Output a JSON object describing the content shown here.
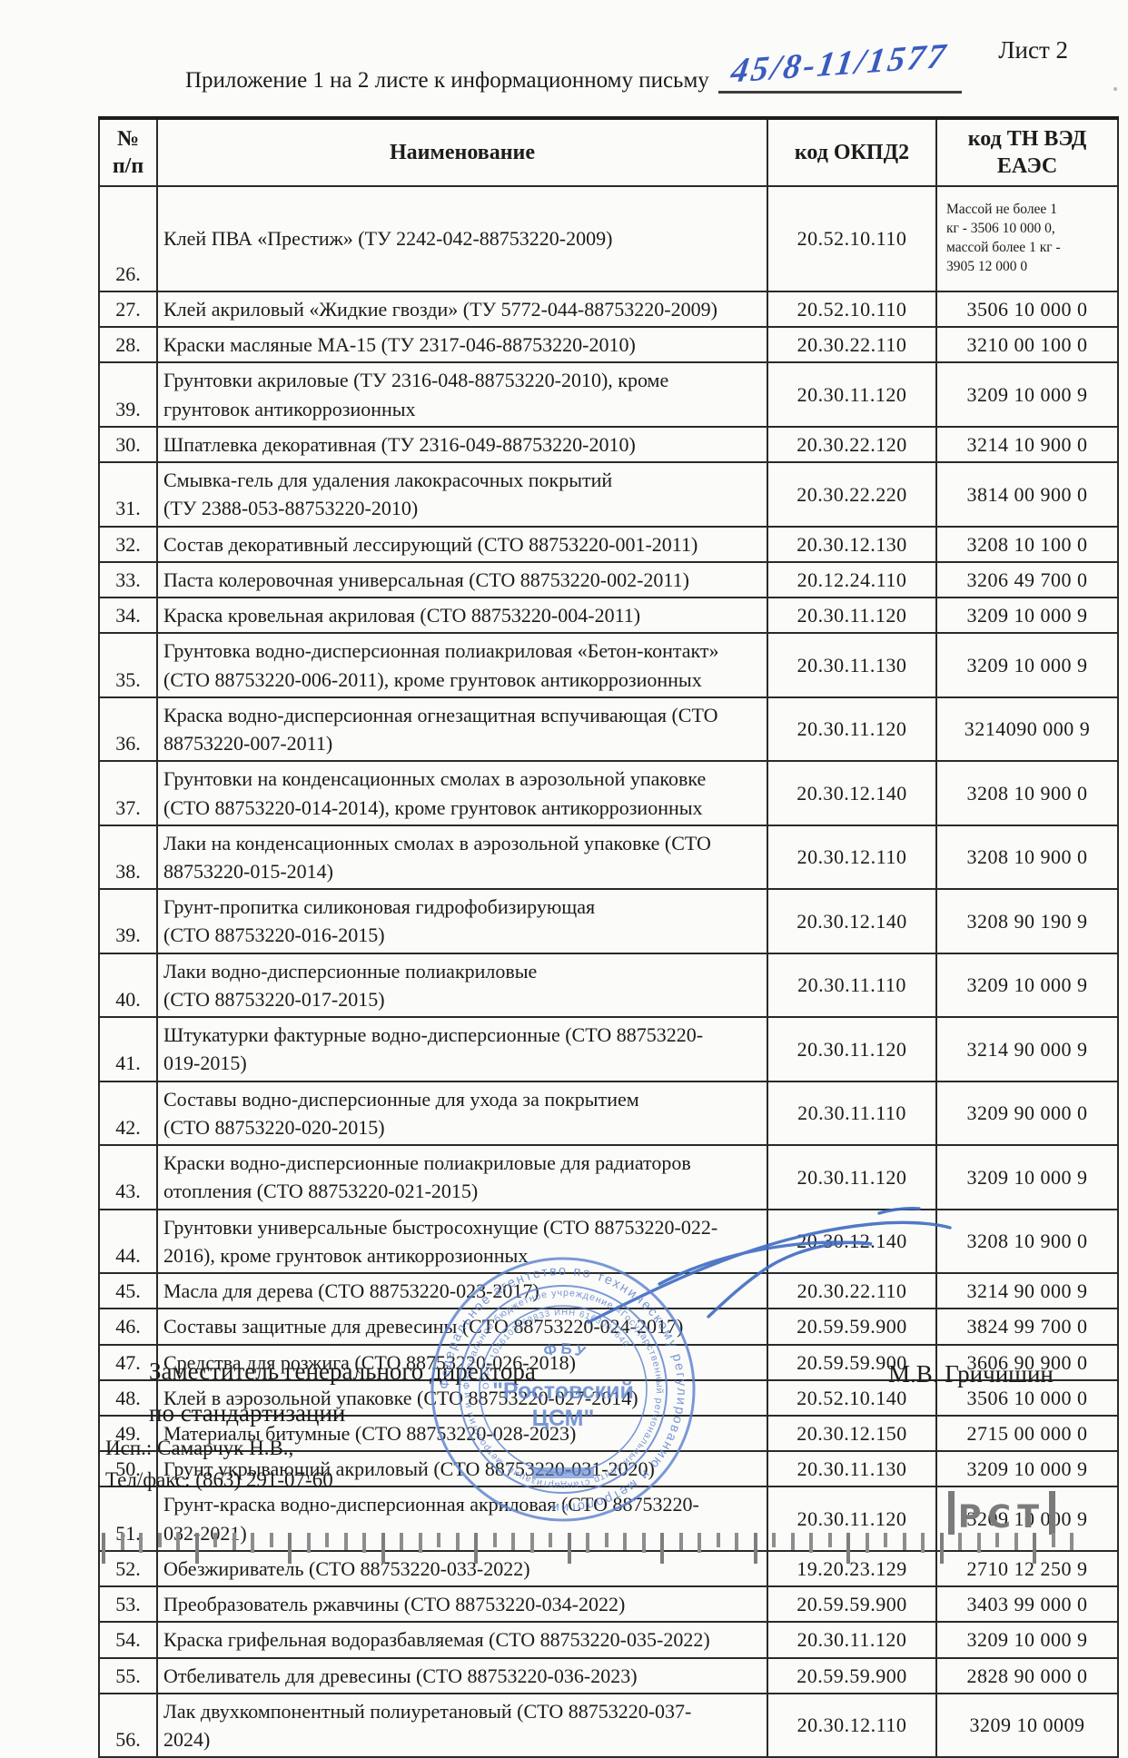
{
  "page": {
    "sheet_label": "Лист 2",
    "title_line": "Приложение 1 на 2 листе к информационному письму",
    "handwritten_number": "45/8-11/1577"
  },
  "table": {
    "headers": {
      "num": "№\nп/п",
      "name": "Наименование",
      "okpd2": "код ОКПД2",
      "tnved": "код ТН ВЭД\nЕАЭС"
    },
    "rows": [
      {
        "num": "26.",
        "name": "Клей ПВА «Престиж» (ТУ 2242-042-88753220-2009)",
        "okpd2": "20.52.10.110",
        "tnved": "Массой не более 1\nкг - 3506 10 000 0,\nмассой более 1 кг -\n3905 12 000 0",
        "small": true,
        "tall": true
      },
      {
        "num": "27.",
        "name": "Клей акриловый «Жидкие гвозди» (ТУ 5772-044-88753220-2009)",
        "okpd2": "20.52.10.110",
        "tnved": "3506 10 000 0"
      },
      {
        "num": "28.",
        "name": "Краски масляные МА-15 (ТУ 2317-046-88753220-2010)",
        "okpd2": "20.30.22.110",
        "tnved": "3210 00 100 0"
      },
      {
        "num": "39.",
        "name": "Грунтовки акриловые (ТУ 2316-048-88753220-2010), кроме\nгрунтовок антикоррозионных",
        "okpd2": "20.30.11.120",
        "tnved": "3209 10 000 9"
      },
      {
        "num": "30.",
        "name": "Шпатлевка декоративная  (ТУ 2316-049-88753220-2010)",
        "okpd2": "20.30.22.120",
        "tnved": "3214 10 900 0"
      },
      {
        "num": "31.",
        "name": "Смывка-гель для удаления лакокрасочных покрытий\n(ТУ 2388-053-88753220-2010)",
        "okpd2": "20.30.22.220",
        "tnved": "3814 00 900 0"
      },
      {
        "num": "32.",
        "name": "Состав декоративный лессирующий (СТО 88753220-001-2011)",
        "okpd2": "20.30.12.130",
        "tnved": "3208 10 100 0"
      },
      {
        "num": "33.",
        "name": "Паста колеровочная универсальная (СТО 88753220-002-2011)",
        "okpd2": "20.12.24.110",
        "tnved": "3206 49 700 0"
      },
      {
        "num": "34.",
        "name": "Краска кровельная акриловая (СТО 88753220-004-2011)",
        "okpd2": "20.30.11.120",
        "tnved": "3209 10 000 9"
      },
      {
        "num": "35.",
        "name": "Грунтовка водно-дисперсионная полиакриловая «Бетон-контакт»\n(СТО 88753220-006-2011), кроме грунтовок антикоррозионных",
        "okpd2": "20.30.11.130",
        "tnved": "3209 10 000 9"
      },
      {
        "num": "36.",
        "name": "Краска водно-дисперсионная огнезащитная вспучивающая (СТО\n88753220-007-2011)",
        "okpd2": "20.30.11.120",
        "tnved": "3214090 000 9"
      },
      {
        "num": "37.",
        "name": "Грунтовки на конденсационных смолах в аэрозольной упаковке\n(СТО 88753220-014-2014), кроме грунтовок антикоррозионных",
        "okpd2": "20.30.12.140",
        "tnved": "3208 10 900 0"
      },
      {
        "num": "38.",
        "name": "Лаки на конденсационных смолах в аэрозольной упаковке (СТО\n88753220-015-2014)",
        "okpd2": "20.30.12.110",
        "tnved": "3208 10 900 0"
      },
      {
        "num": "39.",
        "name": "Грунт-пропитка силиконовая гидрофобизирующая\n(СТО 88753220-016-2015)",
        "okpd2": "20.30.12.140",
        "tnved": "3208 90 190 9"
      },
      {
        "num": "40.",
        "name": "Лаки водно-дисперсионные полиакриловые\n(СТО 88753220-017-2015)",
        "okpd2": "20.30.11.110",
        "tnved": "3209 10 000 9"
      },
      {
        "num": "41.",
        "name": "Штукатурки фактурные водно-дисперсионные (СТО 88753220-\n019-2015)",
        "okpd2": "20.30.11.120",
        "tnved": "3214 90 000 9"
      },
      {
        "num": "42.",
        "name": "Составы водно-дисперсионные для ухода за покрытием\n(СТО 88753220-020-2015)",
        "okpd2": "20.30.11.110",
        "tnved": "3209 90 000 0"
      },
      {
        "num": "43.",
        "name": "Краски водно-дисперсионные полиакриловые для радиаторов\nотопления (СТО 88753220-021-2015)",
        "okpd2": "20.30.11.120",
        "tnved": "3209 10 000 9"
      },
      {
        "num": "44.",
        "name": "Грунтовки универсальные быстросохнущие (СТО 88753220-022-\n2016), кроме грунтовок антикоррозионных",
        "okpd2": "20.30.12.140",
        "tnved": "3208 10 900 0"
      },
      {
        "num": "45.",
        "name": "Масла для дерева (СТО 88753220-023-2017)",
        "okpd2": "20.30.22.110",
        "tnved": "3214 90 000 9"
      },
      {
        "num": "46.",
        "name": "Составы защитные для древесины (СТО 88753220-024-2017)",
        "okpd2": "20.59.59.900",
        "tnved": "3824 99 700 0"
      },
      {
        "num": "47.",
        "name": "Средства для розжига (СТО 88753220-026-2018)",
        "okpd2": "20.59.59.900",
        "tnved": "3606 90 900 0"
      },
      {
        "num": "48.",
        "name": "Клей в аэрозольной упаковке (СТО 88753220-027-2014)",
        "okpd2": "20.52.10.140",
        "tnved": "3506 10 000 0"
      },
      {
        "num": "49.",
        "name": "Материалы битумные (СТО 88753220-028-2023)",
        "okpd2": "20.30.12.150",
        "tnved": "2715 00 000 0"
      },
      {
        "num": "50.",
        "name": "Грунт укрывающий акриловый (СТО 88753220-031-2020)",
        "okpd2": "20.30.11.130",
        "tnved": "3209 10 000 9"
      },
      {
        "num": "51.",
        "name": "Грунт-краска водно-дисперсионная акриловая (СТО 88753220-\n032-2021)",
        "okpd2": "20.30.11.120",
        "tnved": "3209 10 000 9"
      },
      {
        "num": "52.",
        "name": "Обезжириватель (СТО 88753220-033-2022)",
        "okpd2": "19.20.23.129",
        "tnved": "2710 12 250 9"
      },
      {
        "num": "53.",
        "name": "Преобразователь ржавчины (СТО 88753220-034-2022)",
        "okpd2": "20.59.59.900",
        "tnved": "3403 99 000 0"
      },
      {
        "num": "54.",
        "name": "Краска грифельная водоразбавляемая (СТО 88753220-035-2022)",
        "okpd2": "20.30.11.120",
        "tnved": "3209 10 000 9"
      },
      {
        "num": "55.",
        "name": "Отбеливатель для древесины (СТО 88753220-036-2023)",
        "okpd2": "20.59.59.900",
        "tnved": "2828 90 000 0"
      },
      {
        "num": "56.",
        "name": "Лак двухкомпонентный полиуретановый (СТО 88753220-037-\n2024)",
        "okpd2": "20.30.12.110",
        "tnved": "3209 10 0009"
      }
    ]
  },
  "footer": {
    "position_line1": "Заместитель генерального директора",
    "position_line2": "по стандартизации",
    "signer_name": "М.В. Гричишин",
    "executor_line1": "Исп.: Самарчук Н.В.,",
    "executor_line2": "Тел/факс: (863) 291-07-60",
    "stamp": {
      "ring_outer": "Федеральное агентство по техническому регулированию и метрологии",
      "ring_inner": "Федеральное бюджетное учреждение «Государственный региональный центр стандартизации, метрологии и испытаний в Ростовской области»",
      "ring_numbers": "ОГРН 1026103163833  ИНН 6163000640",
      "center_line1": "ФБУ",
      "center_line2": "\"Ростовский",
      "center_line3": "ЦСМ\""
    },
    "ruler_label": "РСТ"
  },
  "colors": {
    "ink_blue": "#3a5cc0",
    "stamp_blue": "#5d83cf",
    "text_black": "#1c1c1c",
    "ruler_grey": "#7b7b7b"
  }
}
